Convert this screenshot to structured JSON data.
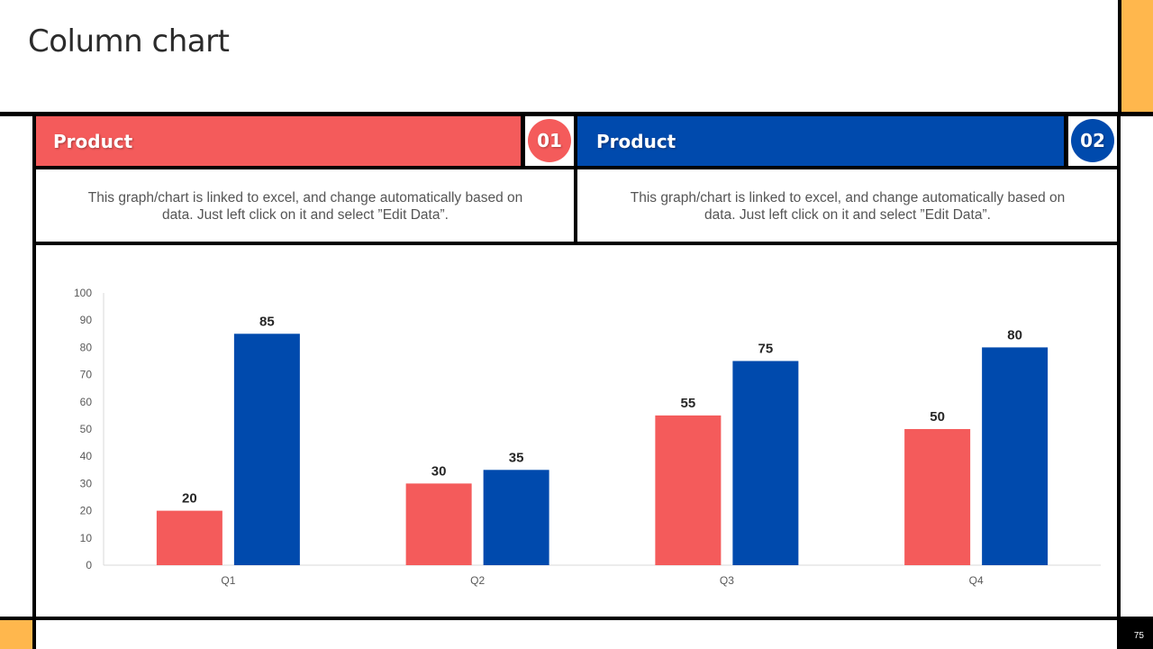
{
  "page": {
    "title": "Column chart",
    "page_number": "75"
  },
  "panels": [
    {
      "label": "Product",
      "number": "01",
      "color": "#F45B5B",
      "description": "This graph/chart is linked to excel, and change automatically based on data. Just left click on it and select ”Edit Data”."
    },
    {
      "label": "Product",
      "number": "02",
      "color": "#004AAD",
      "description": "This graph/chart is linked to excel, and change automatically based on data. Just left click on it and select ”Edit Data”."
    }
  ],
  "chart_data": {
    "type": "bar",
    "title": "",
    "xlabel": "",
    "ylabel": "",
    "categories": [
      "Q1",
      "Q2",
      "Q3",
      "Q4"
    ],
    "series": [
      {
        "name": "Product 01",
        "color": "#F45B5B",
        "values": [
          20,
          30,
          55,
          50
        ]
      },
      {
        "name": "Product 02",
        "color": "#004AAD",
        "values": [
          85,
          35,
          75,
          80
        ]
      }
    ],
    "ylim": [
      0,
      100
    ],
    "yticks": [
      0,
      10,
      20,
      30,
      40,
      50,
      60,
      70,
      80,
      90,
      100
    ],
    "grid": false,
    "data_labels": true
  }
}
